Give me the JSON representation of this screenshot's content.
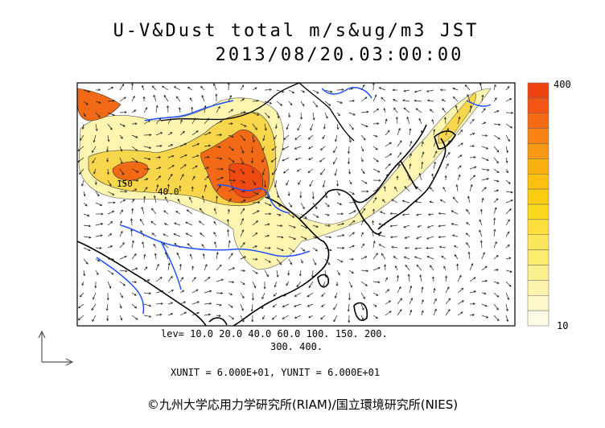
{
  "header": {
    "title": "U-V&Dust total m/s&ug/m3 JST",
    "datetime": "2013/08/20.03:00:00"
  },
  "legend": {
    "levels_line1": "lev= 10.0 20.0 40.0 60.0 100. 150. 200.",
    "levels_line2": "300. 400.",
    "colorbar_max": "400",
    "colorbar_min": "10",
    "colorbar_colors": [
      "#fdfbe6",
      "#fdf8cc",
      "#fcf4ae",
      "#fbf08e",
      "#fbec70",
      "#fce75c",
      "#fcdf3c",
      "#fbd81e",
      "#fbcd10",
      "#fbc010",
      "#fbb012",
      "#fa9a14",
      "#f88214",
      "#f56a14",
      "#f25514",
      "#ee4412"
    ]
  },
  "map": {
    "contour_labels": [
      "150",
      "40.0"
    ],
    "colors": {
      "coast": "#000000",
      "rivers": "#1e50ff",
      "dust_low": "#fdf5b0",
      "dust_mid": "#f7d64c",
      "dust_high": "#f26a16",
      "dust_max": "#ee4a12"
    }
  },
  "axes_units": "XUNIT = 6.000E+01, YUNIT = 6.000E+01",
  "credit": "©九州大学応用力学研究所(RIAM)/国立環境研究所(NIES)"
}
